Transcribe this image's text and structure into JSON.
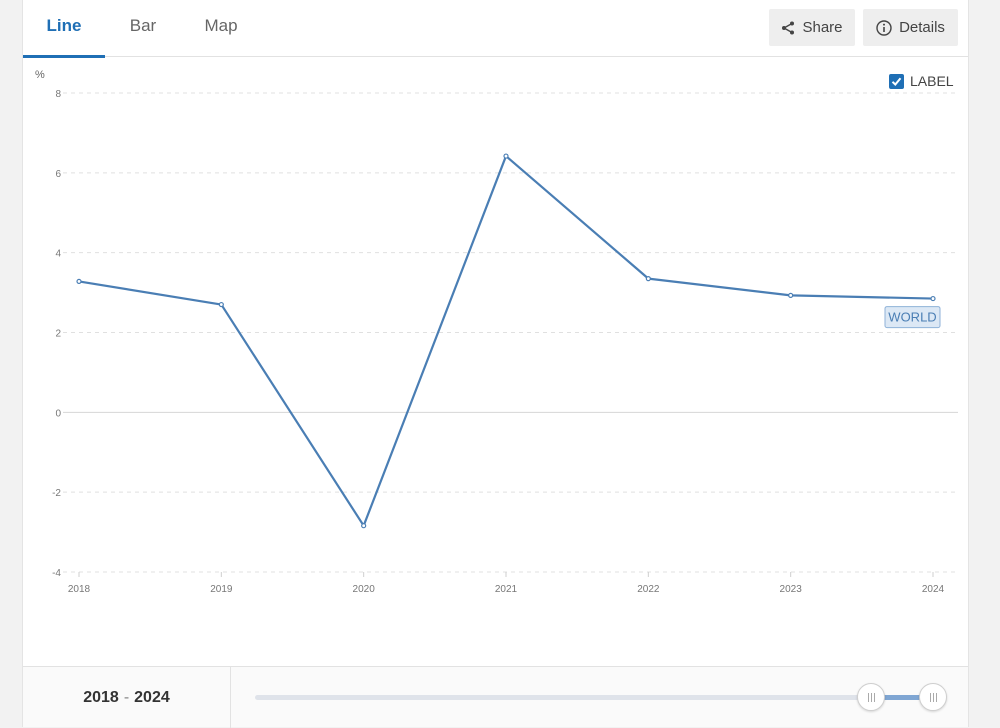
{
  "tabs": [
    {
      "label": "Line",
      "active": true
    },
    {
      "label": "Bar",
      "active": false
    },
    {
      "label": "Map",
      "active": false
    }
  ],
  "toolbar": {
    "share_label": "Share",
    "details_label": "Details"
  },
  "legend": {
    "label": "LABEL",
    "checked": true
  },
  "range": {
    "start": "2018",
    "separator": "-",
    "end": "2024"
  },
  "colors": {
    "accent": "#1f6fb5",
    "line": "#4a7eb4",
    "grid": "#e0e0e0"
  },
  "chart_data": {
    "type": "line",
    "title": "",
    "xlabel": "",
    "ylabel": "%",
    "x": [
      "2018",
      "2019",
      "2020",
      "2021",
      "2022",
      "2023",
      "2024"
    ],
    "series": [
      {
        "name": "WORLD",
        "values": [
          3.28,
          2.7,
          -2.84,
          6.42,
          3.35,
          2.93,
          2.85
        ]
      }
    ],
    "ylim": [
      -4,
      8
    ],
    "yticks": [
      8,
      6,
      4,
      2,
      0,
      -2,
      -4
    ],
    "grid": true,
    "legend_placement": "top-right"
  }
}
